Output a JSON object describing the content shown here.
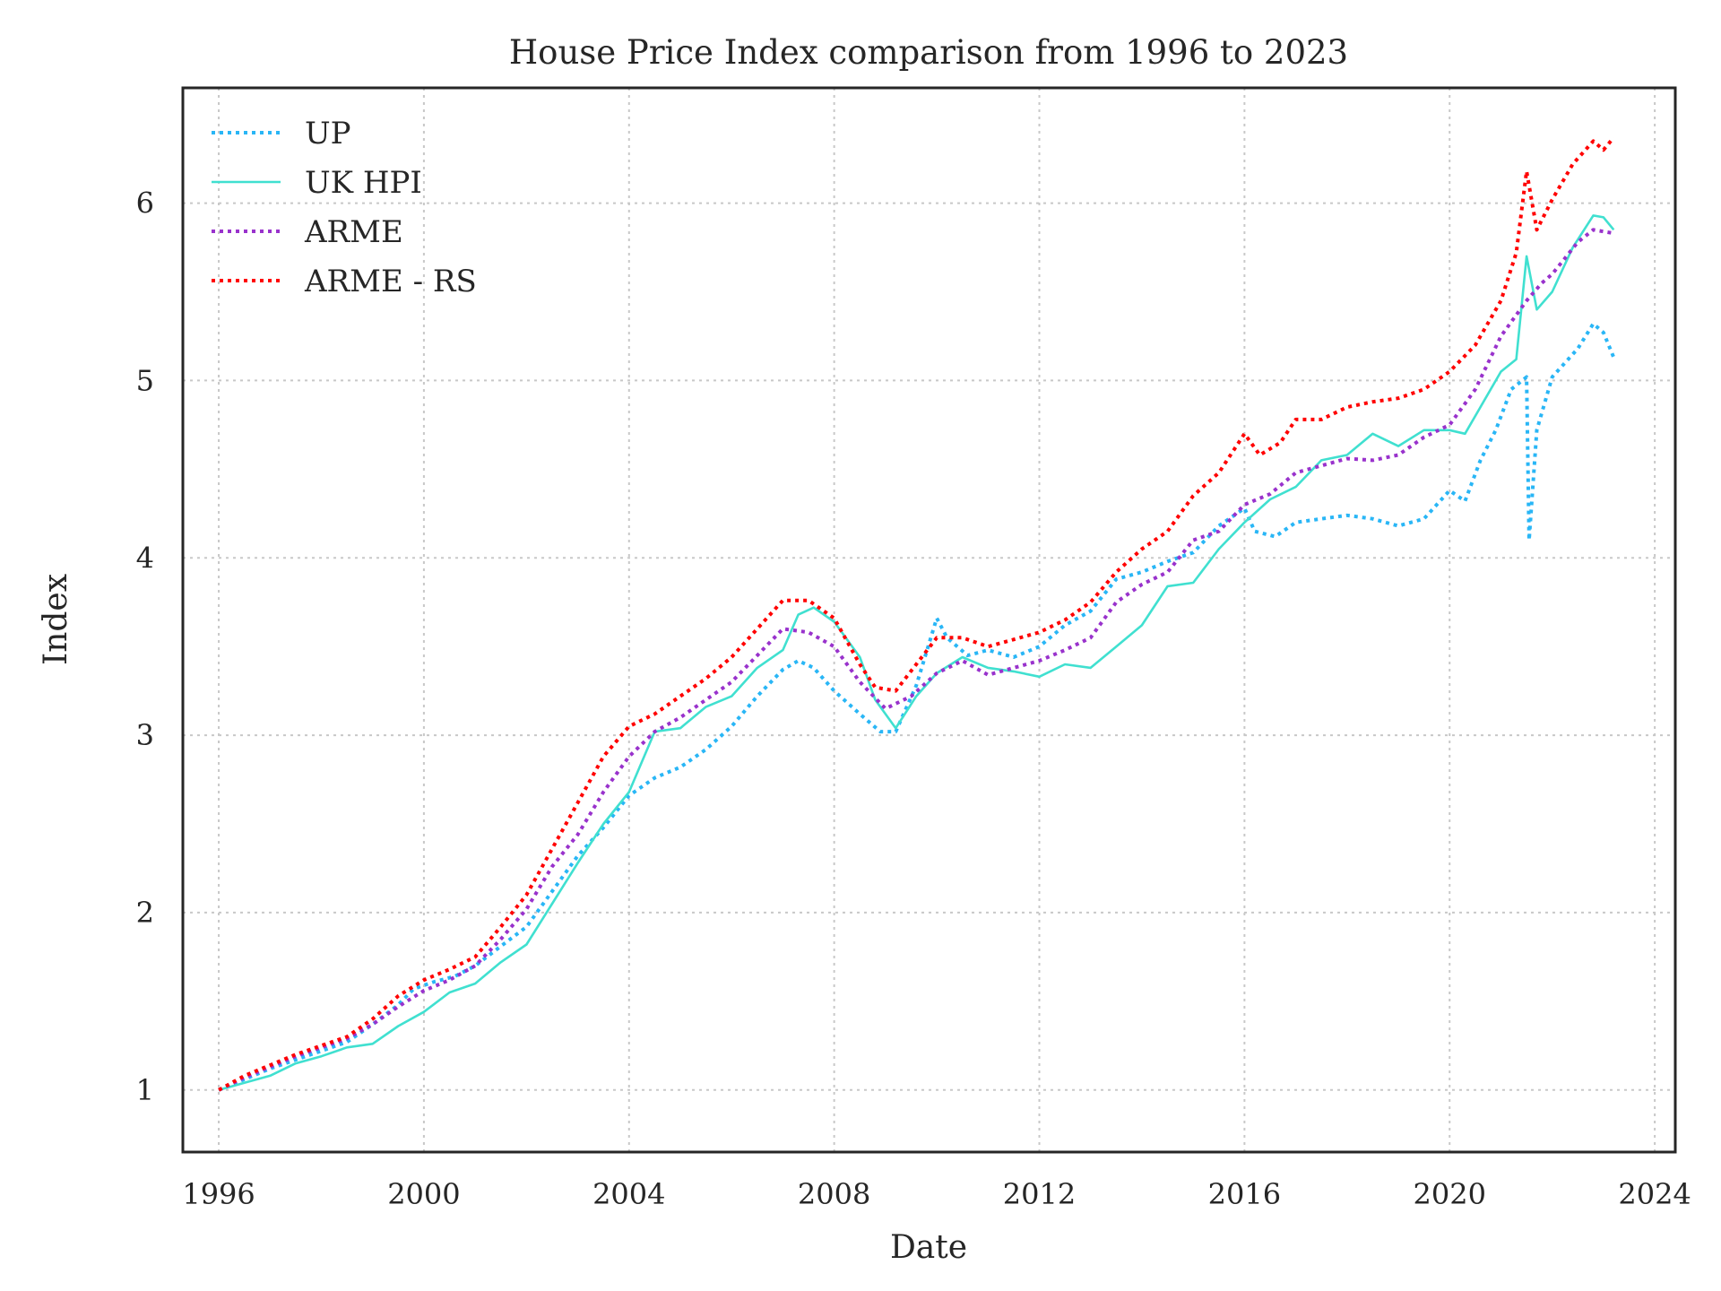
{
  "chart_data": {
    "type": "line",
    "title": "House Price Index comparison from 1996 to 2023",
    "xlabel": "Date",
    "ylabel": "Index",
    "xlim": [
      1995.3,
      2024.4
    ],
    "ylim": [
      0.65,
      6.65
    ],
    "xticks": [
      "1996",
      "2000",
      "2004",
      "2008",
      "2012",
      "2016",
      "2020",
      "2024"
    ],
    "yticks": [
      "1",
      "2",
      "3",
      "4",
      "5",
      "6"
    ],
    "grid": true,
    "legend_position": "top-left",
    "series": [
      {
        "name": "UP",
        "color": "#29b6f6",
        "style": "dotted",
        "points": [
          [
            1996.0,
            1.0
          ],
          [
            1996.5,
            1.06
          ],
          [
            1997.0,
            1.12
          ],
          [
            1997.5,
            1.17
          ],
          [
            1998.0,
            1.22
          ],
          [
            1998.5,
            1.27
          ],
          [
            1999.0,
            1.37
          ],
          [
            1999.5,
            1.48
          ],
          [
            1999.8,
            1.57
          ],
          [
            2000.2,
            1.61
          ],
          [
            2000.6,
            1.64
          ],
          [
            2001.0,
            1.7
          ],
          [
            2001.5,
            1.81
          ],
          [
            2002.0,
            1.92
          ],
          [
            2002.5,
            2.12
          ],
          [
            2003.0,
            2.32
          ],
          [
            2003.5,
            2.48
          ],
          [
            2004.0,
            2.66
          ],
          [
            2004.5,
            2.76
          ],
          [
            2005.0,
            2.82
          ],
          [
            2005.5,
            2.92
          ],
          [
            2006.0,
            3.05
          ],
          [
            2006.5,
            3.22
          ],
          [
            2007.0,
            3.37
          ],
          [
            2007.3,
            3.42
          ],
          [
            2007.6,
            3.38
          ],
          [
            2008.0,
            3.25
          ],
          [
            2008.5,
            3.12
          ],
          [
            2008.9,
            3.02
          ],
          [
            2009.2,
            3.02
          ],
          [
            2009.6,
            3.28
          ],
          [
            2010.0,
            3.66
          ],
          [
            2010.2,
            3.55
          ],
          [
            2010.6,
            3.45
          ],
          [
            2011.0,
            3.48
          ],
          [
            2011.5,
            3.44
          ],
          [
            2012.0,
            3.5
          ],
          [
            2012.5,
            3.62
          ],
          [
            2013.0,
            3.7
          ],
          [
            2013.5,
            3.88
          ],
          [
            2014.0,
            3.92
          ],
          [
            2014.5,
            3.98
          ],
          [
            2015.0,
            4.03
          ],
          [
            2015.5,
            4.18
          ],
          [
            2016.0,
            4.28
          ],
          [
            2016.2,
            4.15
          ],
          [
            2016.6,
            4.12
          ],
          [
            2017.0,
            4.2
          ],
          [
            2017.5,
            4.22
          ],
          [
            2018.0,
            4.24
          ],
          [
            2018.5,
            4.22
          ],
          [
            2019.0,
            4.18
          ],
          [
            2019.5,
            4.22
          ],
          [
            2020.0,
            4.38
          ],
          [
            2020.3,
            4.32
          ],
          [
            2020.6,
            4.55
          ],
          [
            2020.9,
            4.72
          ],
          [
            2021.2,
            4.95
          ],
          [
            2021.5,
            5.02
          ],
          [
            2021.55,
            4.1
          ],
          [
            2021.7,
            4.72
          ],
          [
            2022.0,
            5.02
          ],
          [
            2022.5,
            5.18
          ],
          [
            2022.8,
            5.32
          ],
          [
            2023.0,
            5.27
          ],
          [
            2023.2,
            5.13
          ]
        ]
      },
      {
        "name": "UK HPI",
        "color": "#40e0d0",
        "style": "solid",
        "points": [
          [
            1996.0,
            1.0
          ],
          [
            1996.5,
            1.04
          ],
          [
            1997.0,
            1.08
          ],
          [
            1997.5,
            1.15
          ],
          [
            1998.0,
            1.19
          ],
          [
            1998.5,
            1.24
          ],
          [
            1999.0,
            1.26
          ],
          [
            1999.5,
            1.36
          ],
          [
            2000.0,
            1.44
          ],
          [
            2000.5,
            1.55
          ],
          [
            2001.0,
            1.6
          ],
          [
            2001.5,
            1.72
          ],
          [
            2002.0,
            1.82
          ],
          [
            2002.5,
            2.05
          ],
          [
            2003.0,
            2.28
          ],
          [
            2003.5,
            2.5
          ],
          [
            2004.0,
            2.68
          ],
          [
            2004.5,
            3.02
          ],
          [
            2005.0,
            3.04
          ],
          [
            2005.5,
            3.16
          ],
          [
            2006.0,
            3.22
          ],
          [
            2006.5,
            3.38
          ],
          [
            2007.0,
            3.48
          ],
          [
            2007.3,
            3.68
          ],
          [
            2007.6,
            3.72
          ],
          [
            2008.0,
            3.64
          ],
          [
            2008.5,
            3.44
          ],
          [
            2008.8,
            3.2
          ],
          [
            2009.2,
            3.04
          ],
          [
            2009.6,
            3.22
          ],
          [
            2010.0,
            3.35
          ],
          [
            2010.5,
            3.44
          ],
          [
            2011.0,
            3.38
          ],
          [
            2011.5,
            3.36
          ],
          [
            2012.0,
            3.33
          ],
          [
            2012.5,
            3.4
          ],
          [
            2013.0,
            3.38
          ],
          [
            2013.5,
            3.5
          ],
          [
            2014.0,
            3.62
          ],
          [
            2014.5,
            3.84
          ],
          [
            2015.0,
            3.86
          ],
          [
            2015.5,
            4.05
          ],
          [
            2016.0,
            4.2
          ],
          [
            2016.5,
            4.33
          ],
          [
            2017.0,
            4.4
          ],
          [
            2017.5,
            4.55
          ],
          [
            2018.0,
            4.58
          ],
          [
            2018.5,
            4.7
          ],
          [
            2019.0,
            4.63
          ],
          [
            2019.5,
            4.72
          ],
          [
            2020.0,
            4.72
          ],
          [
            2020.3,
            4.7
          ],
          [
            2020.6,
            4.85
          ],
          [
            2021.0,
            5.05
          ],
          [
            2021.3,
            5.12
          ],
          [
            2021.5,
            5.7
          ],
          [
            2021.7,
            5.4
          ],
          [
            2022.0,
            5.5
          ],
          [
            2022.4,
            5.75
          ],
          [
            2022.8,
            5.93
          ],
          [
            2023.0,
            5.92
          ],
          [
            2023.2,
            5.85
          ]
        ]
      },
      {
        "name": "ARME",
        "color": "#9932cc",
        "style": "dotted",
        "points": [
          [
            1996.0,
            1.0
          ],
          [
            1996.5,
            1.07
          ],
          [
            1997.0,
            1.13
          ],
          [
            1997.5,
            1.19
          ],
          [
            1998.0,
            1.24
          ],
          [
            1998.5,
            1.29
          ],
          [
            1999.0,
            1.37
          ],
          [
            1999.5,
            1.47
          ],
          [
            2000.0,
            1.56
          ],
          [
            2000.5,
            1.62
          ],
          [
            2001.0,
            1.7
          ],
          [
            2001.5,
            1.85
          ],
          [
            2002.0,
            2.02
          ],
          [
            2002.5,
            2.26
          ],
          [
            2003.0,
            2.44
          ],
          [
            2003.5,
            2.68
          ],
          [
            2004.0,
            2.88
          ],
          [
            2004.5,
            3.02
          ],
          [
            2005.0,
            3.1
          ],
          [
            2005.5,
            3.2
          ],
          [
            2006.0,
            3.3
          ],
          [
            2006.5,
            3.45
          ],
          [
            2007.0,
            3.6
          ],
          [
            2007.5,
            3.58
          ],
          [
            2008.0,
            3.5
          ],
          [
            2008.5,
            3.3
          ],
          [
            2009.0,
            3.15
          ],
          [
            2009.5,
            3.22
          ],
          [
            2010.0,
            3.35
          ],
          [
            2010.5,
            3.42
          ],
          [
            2011.0,
            3.34
          ],
          [
            2011.5,
            3.38
          ],
          [
            2012.0,
            3.42
          ],
          [
            2012.5,
            3.48
          ],
          [
            2013.0,
            3.55
          ],
          [
            2013.5,
            3.75
          ],
          [
            2014.0,
            3.85
          ],
          [
            2014.5,
            3.92
          ],
          [
            2015.0,
            4.1
          ],
          [
            2015.5,
            4.15
          ],
          [
            2016.0,
            4.3
          ],
          [
            2016.5,
            4.36
          ],
          [
            2017.0,
            4.48
          ],
          [
            2017.5,
            4.52
          ],
          [
            2018.0,
            4.56
          ],
          [
            2018.5,
            4.55
          ],
          [
            2019.0,
            4.58
          ],
          [
            2019.5,
            4.68
          ],
          [
            2020.0,
            4.75
          ],
          [
            2020.5,
            4.95
          ],
          [
            2021.0,
            5.25
          ],
          [
            2021.5,
            5.45
          ],
          [
            2021.8,
            5.55
          ],
          [
            2022.0,
            5.6
          ],
          [
            2022.5,
            5.78
          ],
          [
            2022.8,
            5.85
          ],
          [
            2023.2,
            5.83
          ]
        ]
      },
      {
        "name": "ARME - RS",
        "color": "#ff0000",
        "style": "dotted",
        "points": [
          [
            1996.0,
            1.0
          ],
          [
            1996.5,
            1.08
          ],
          [
            1997.0,
            1.14
          ],
          [
            1997.5,
            1.2
          ],
          [
            1998.0,
            1.25
          ],
          [
            1998.5,
            1.3
          ],
          [
            1999.0,
            1.4
          ],
          [
            1999.5,
            1.53
          ],
          [
            2000.0,
            1.62
          ],
          [
            2000.5,
            1.68
          ],
          [
            2001.0,
            1.75
          ],
          [
            2001.5,
            1.92
          ],
          [
            2002.0,
            2.1
          ],
          [
            2002.5,
            2.36
          ],
          [
            2003.0,
            2.62
          ],
          [
            2003.5,
            2.88
          ],
          [
            2004.0,
            3.05
          ],
          [
            2004.5,
            3.12
          ],
          [
            2005.0,
            3.22
          ],
          [
            2005.5,
            3.32
          ],
          [
            2006.0,
            3.44
          ],
          [
            2006.5,
            3.6
          ],
          [
            2007.0,
            3.76
          ],
          [
            2007.5,
            3.76
          ],
          [
            2008.0,
            3.66
          ],
          [
            2008.5,
            3.4
          ],
          [
            2008.8,
            3.27
          ],
          [
            2009.2,
            3.25
          ],
          [
            2009.6,
            3.4
          ],
          [
            2010.0,
            3.55
          ],
          [
            2010.5,
            3.55
          ],
          [
            2011.0,
            3.5
          ],
          [
            2011.5,
            3.54
          ],
          [
            2012.0,
            3.58
          ],
          [
            2012.5,
            3.65
          ],
          [
            2013.0,
            3.75
          ],
          [
            2013.5,
            3.92
          ],
          [
            2014.0,
            4.05
          ],
          [
            2014.5,
            4.15
          ],
          [
            2015.0,
            4.35
          ],
          [
            2015.5,
            4.48
          ],
          [
            2016.0,
            4.7
          ],
          [
            2016.3,
            4.58
          ],
          [
            2016.7,
            4.65
          ],
          [
            2017.0,
            4.78
          ],
          [
            2017.5,
            4.78
          ],
          [
            2018.0,
            4.85
          ],
          [
            2018.5,
            4.88
          ],
          [
            2019.0,
            4.9
          ],
          [
            2019.5,
            4.95
          ],
          [
            2020.0,
            5.05
          ],
          [
            2020.5,
            5.2
          ],
          [
            2021.0,
            5.45
          ],
          [
            2021.3,
            5.72
          ],
          [
            2021.5,
            6.18
          ],
          [
            2021.7,
            5.85
          ],
          [
            2022.0,
            6.02
          ],
          [
            2022.4,
            6.22
          ],
          [
            2022.8,
            6.35
          ],
          [
            2023.0,
            6.3
          ],
          [
            2023.2,
            6.37
          ]
        ]
      }
    ]
  }
}
